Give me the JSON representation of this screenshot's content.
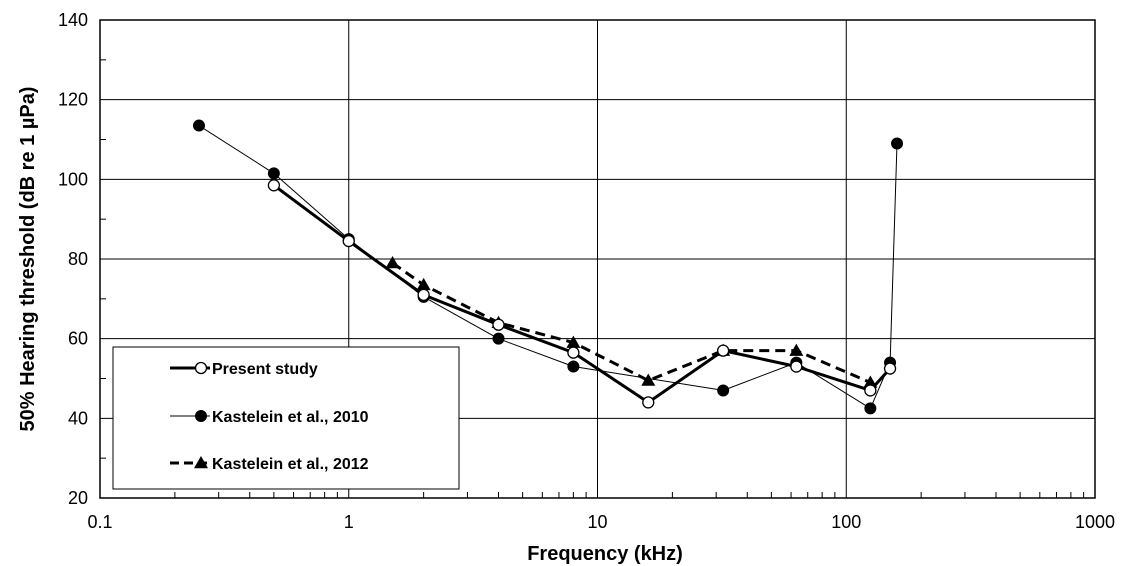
{
  "chart_data": {
    "type": "line",
    "title": "",
    "xlabel": "Frequency (kHz)",
    "ylabel": "50% Hearing threshold (dB re 1 µPa)",
    "x_scale": "log",
    "xlim": [
      0.1,
      1000
    ],
    "ylim": [
      20,
      140
    ],
    "x_ticks": [
      0.1,
      1,
      10,
      100,
      1000
    ],
    "x_tick_labels": [
      "0.1",
      "1",
      "10",
      "100",
      "1000"
    ],
    "y_ticks": [
      20,
      40,
      60,
      80,
      100,
      120,
      140
    ],
    "y_tick_labels": [
      "20",
      "40",
      "60",
      "80",
      "100",
      "120",
      "140"
    ],
    "grid": true,
    "legend_position": "bottom-left",
    "series": [
      {
        "name": "Present study",
        "marker": "open-circle",
        "line": "solid-thick",
        "color": "#000000",
        "points": [
          [
            0.5,
            98.5
          ],
          [
            1,
            84.5
          ],
          [
            2,
            71
          ],
          [
            4,
            63.5
          ],
          [
            8,
            56.5
          ],
          [
            16,
            44
          ],
          [
            32,
            57
          ],
          [
            63,
            53
          ],
          [
            125,
            47
          ],
          [
            150,
            52.5
          ]
        ]
      },
      {
        "name": "Kastelein et al., 2010",
        "marker": "filled-circle",
        "line": "solid-thin",
        "color": "#000000",
        "points": [
          [
            0.25,
            113.5
          ],
          [
            0.5,
            101.5
          ],
          [
            1,
            85
          ],
          [
            2,
            70.5
          ],
          [
            4,
            60
          ],
          [
            8,
            53
          ],
          [
            32,
            47
          ],
          [
            63,
            54
          ],
          [
            125,
            42.5
          ],
          [
            150,
            54
          ],
          [
            160,
            109
          ]
        ]
      },
      {
        "name": "Kastelein et al., 2012",
        "marker": "filled-triangle",
        "line": "dashed",
        "color": "#000000",
        "points": [
          [
            1.5,
            79
          ],
          [
            2,
            73.5
          ],
          [
            4,
            64
          ],
          [
            8,
            59
          ],
          [
            16,
            49.5
          ],
          [
            32,
            57
          ],
          [
            63,
            57
          ],
          [
            125,
            49
          ]
        ]
      }
    ]
  }
}
